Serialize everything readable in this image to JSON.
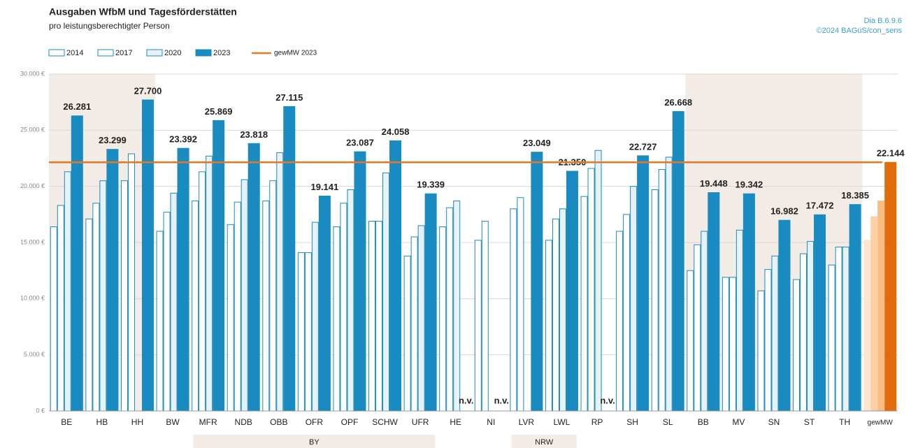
{
  "chart_data": {
    "type": "bar",
    "title": "Ausgaben WfbM und Tagesförderstätten",
    "subtitle": "pro leistungsberechtigter Person",
    "source": [
      "Dia B.6.9.6",
      "©2024 BAGüS/con_sens"
    ],
    "categories": [
      "BE",
      "HB",
      "HH",
      "BW",
      "MFR",
      "NDB",
      "OBB",
      "OFR",
      "OPF",
      "SCHW",
      "UFR",
      "HE",
      "NI",
      "LVR",
      "LWL",
      "RP",
      "SH",
      "SL",
      "BB",
      "MV",
      "SN",
      "ST",
      "TH",
      "gewMW"
    ],
    "series": [
      {
        "name": "2014",
        "color": "#ffffff",
        "values": [
          16400,
          17100,
          20500,
          16000,
          18700,
          16600,
          18700,
          14100,
          16400,
          16900,
          13800,
          16400,
          15200,
          18000,
          15200,
          19100,
          16000,
          19700,
          12500,
          11900,
          10700,
          11700,
          13000,
          15200
        ]
      },
      {
        "name": "2017",
        "color": "#ffffff",
        "values": [
          18300,
          18500,
          22900,
          17700,
          21300,
          18600,
          20500,
          14100,
          18500,
          16900,
          15500,
          18100,
          16900,
          19000,
          17100,
          21600,
          17500,
          21500,
          14800,
          11900,
          12600,
          14000,
          14600,
          17300
        ]
      },
      {
        "name": "2020",
        "color": "#e6f2f8",
        "values": [
          21300,
          20500,
          null,
          19400,
          22700,
          20600,
          23000,
          16800,
          19700,
          21200,
          16500,
          18700,
          null,
          null,
          18000,
          23200,
          20000,
          22600,
          16000,
          16100,
          13800,
          15100,
          14600,
          18700
        ]
      },
      {
        "name": "2023",
        "color": "#1a8bc0",
        "values": [
          26281,
          23299,
          27700,
          23392,
          25869,
          23818,
          27115,
          19141,
          23087,
          24058,
          19339,
          null,
          null,
          23049,
          21350,
          null,
          22727,
          26668,
          19448,
          19342,
          16982,
          17472,
          18385,
          22144
        ],
        "value_labels": [
          "26.281",
          "23.299",
          "27.700",
          "23.392",
          "25.869",
          "23.818",
          "27.115",
          "19.141",
          "23.087",
          "24.058",
          "19.339",
          "n.v.",
          "n.v.",
          "23.049",
          "21.350",
          "n.v.",
          "22.727",
          "26.668",
          "19.448",
          "19.342",
          "16.982",
          "17.472",
          "18.385",
          "22.144"
        ]
      }
    ],
    "highlight": {
      "category": "gewMW",
      "colors": [
        "#fde6cf",
        "#fbd0a4",
        "#f8bb80",
        "#e36c0a"
      ]
    },
    "reference_line": {
      "name": "gewMW 2023",
      "value": 22144,
      "color": "#e87722"
    },
    "groups": [
      {
        "label": "BY",
        "first": "MFR",
        "last": "UFR"
      },
      {
        "label": "NRW",
        "first": "LVR",
        "last": "LWL"
      }
    ],
    "shaded": [
      [
        "BE",
        "HH"
      ],
      [
        "BB",
        "TH"
      ]
    ],
    "ylim": [
      0,
      30000
    ],
    "yticks": [
      {
        "value": 0,
        "label": "0 €"
      },
      {
        "value": 5000,
        "label": "5.000 €"
      },
      {
        "value": 10000,
        "label": "10.000 €"
      },
      {
        "value": 15000,
        "label": "15.000 €"
      },
      {
        "value": 20000,
        "label": "20.000 €"
      },
      {
        "value": 25000,
        "label": "25.000 €"
      },
      {
        "value": 30000,
        "label": "30.000 €"
      }
    ],
    "grid": true
  }
}
